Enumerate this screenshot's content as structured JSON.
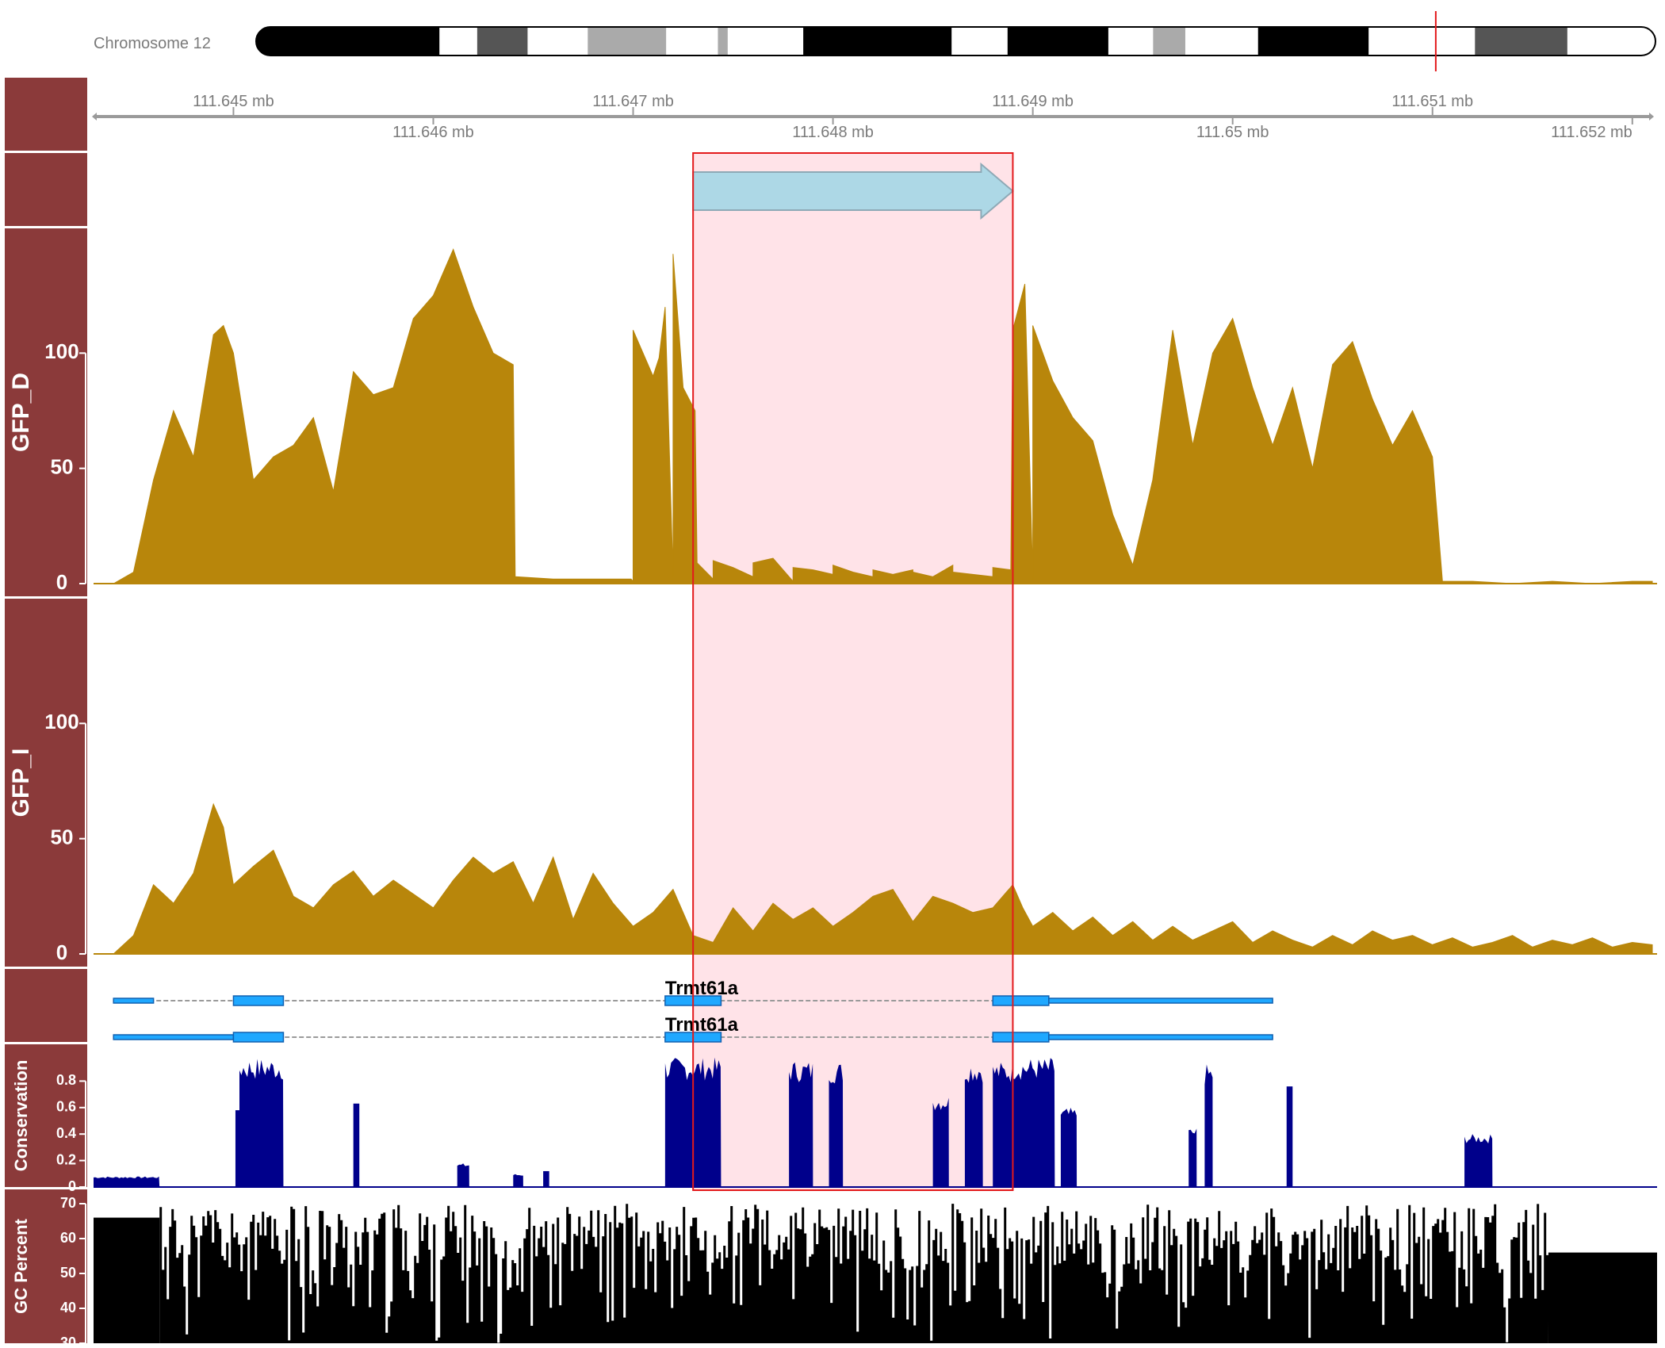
{
  "chromosome": {
    "label": "Chromosome 12",
    "bands": [
      {
        "start": 0.0,
        "end": 0.131,
        "color": "#000000"
      },
      {
        "start": 0.131,
        "end": 0.158,
        "color": "#ffffff"
      },
      {
        "start": 0.158,
        "end": 0.194,
        "color": "#555555"
      },
      {
        "start": 0.194,
        "end": 0.237,
        "color": "#ffffff"
      },
      {
        "start": 0.237,
        "end": 0.293,
        "color": "#aaaaaa"
      },
      {
        "start": 0.293,
        "end": 0.33,
        "color": "#ffffff"
      },
      {
        "start": 0.33,
        "end": 0.337,
        "color": "#aaaaaa"
      },
      {
        "start": 0.337,
        "end": 0.391,
        "color": "#ffffff"
      },
      {
        "start": 0.391,
        "end": 0.497,
        "color": "#000000"
      },
      {
        "start": 0.497,
        "end": 0.537,
        "color": "#ffffff"
      },
      {
        "start": 0.537,
        "end": 0.609,
        "color": "#000000"
      },
      {
        "start": 0.609,
        "end": 0.641,
        "color": "#ffffff"
      },
      {
        "start": 0.641,
        "end": 0.664,
        "color": "#aaaaaa"
      },
      {
        "start": 0.664,
        "end": 0.716,
        "color": "#ffffff"
      },
      {
        "start": 0.716,
        "end": 0.795,
        "color": "#000000"
      },
      {
        "start": 0.795,
        "end": 0.871,
        "color": "#ffffff"
      },
      {
        "start": 0.871,
        "end": 0.937,
        "color": "#555555"
      },
      {
        "start": 0.937,
        "end": 1.0,
        "color": "#ffffff"
      }
    ],
    "marker_position": 0.843,
    "marker_color": "#e31a1c"
  },
  "colors": {
    "panel": "#8b3a3a",
    "coverage": "#b8860b",
    "highlight_fill": "#ffe3e8",
    "highlight_border": "#e31a1c",
    "gene": "#1fa8ff",
    "gene_border": "#1060b0",
    "intron": "#9a9a9a",
    "arrow_fill": "#add8e6",
    "arrow_border": "#8ea9b6",
    "conservation": "#00008b",
    "gc": "#000000",
    "axis": "#9a9a9a"
  },
  "chart_data": {
    "type": "area",
    "xlim": [
      111.6443,
      111.6521
    ],
    "axis": {
      "unit": "mb",
      "ticks_top": [
        {
          "value": 111.645,
          "label": "111.645 mb"
        },
        {
          "value": 111.647,
          "label": "111.647 mb"
        },
        {
          "value": 111.649,
          "label": "111.649 mb"
        },
        {
          "value": 111.651,
          "label": "111.651 mb"
        }
      ],
      "ticks_bottom": [
        {
          "value": 111.646,
          "label": "111.646 mb"
        },
        {
          "value": 111.648,
          "label": "111.648 mb"
        },
        {
          "value": 111.65,
          "label": "111.65 mb"
        },
        {
          "value": 111.652,
          "label": "111.652 mb"
        }
      ]
    },
    "highlight": {
      "start": 111.6473,
      "end": 111.6489
    },
    "feature_arrow": {
      "start": 111.6473,
      "end": 111.6489
    },
    "tracks": [
      {
        "name": "GFP_D",
        "ylim": [
          0,
          150
        ],
        "yticks": [
          0,
          50,
          100
        ],
        "points": [
          [
            111.6443,
            0
          ],
          [
            111.6444,
            0
          ],
          [
            111.6445,
            5
          ],
          [
            111.6446,
            45
          ],
          [
            111.6447,
            75
          ],
          [
            111.6448,
            55
          ],
          [
            111.6449,
            108
          ],
          [
            111.64495,
            112
          ],
          [
            111.645,
            100
          ],
          [
            111.6451,
            45
          ],
          [
            111.6452,
            55
          ],
          [
            111.6453,
            60
          ],
          [
            111.6454,
            72
          ],
          [
            111.6455,
            40
          ],
          [
            111.6456,
            92
          ],
          [
            111.6457,
            82
          ],
          [
            111.6458,
            85
          ],
          [
            111.6459,
            115
          ],
          [
            111.646,
            125
          ],
          [
            111.6461,
            145
          ],
          [
            111.6462,
            120
          ],
          [
            111.6463,
            100
          ],
          [
            111.6464,
            95
          ],
          [
            111.64641,
            3
          ],
          [
            111.6466,
            2
          ],
          [
            111.6468,
            2
          ],
          [
            111.647,
            1
          ],
          [
            111.6472,
            3
          ],
          [
            111.6474,
            2
          ],
          [
            111.6476,
            3
          ],
          [
            111.6478,
            1
          ],
          [
            111.648,
            4
          ],
          [
            111.6482,
            3
          ],
          [
            111.6484,
            6
          ],
          [
            111.6486,
            8
          ],
          [
            111.6488,
            3
          ],
          [
            111.649,
            2
          ],
          [
            111.64699,
            2
          ],
          [
            111.647,
            110
          ],
          [
            111.6471,
            90
          ],
          [
            111.64713,
            98
          ],
          [
            111.64716,
            120
          ],
          [
            111.6472,
            143
          ],
          [
            111.64725,
            85
          ],
          [
            111.64731,
            75
          ],
          [
            111.64732,
            9
          ],
          [
            111.6474,
            10
          ],
          [
            111.6475,
            7
          ],
          [
            111.6476,
            9
          ],
          [
            111.6477,
            11
          ],
          [
            111.6478,
            7
          ],
          [
            111.6479,
            6
          ],
          [
            111.648,
            8
          ],
          [
            111.6481,
            5
          ],
          [
            111.6482,
            6
          ],
          [
            111.6483,
            4
          ],
          [
            111.6484,
            5
          ],
          [
            111.6485,
            3
          ],
          [
            111.6486,
            5
          ],
          [
            111.6487,
            4
          ],
          [
            111.6488,
            7
          ],
          [
            111.64889,
            6
          ],
          [
            111.6489,
            110
          ],
          [
            111.64896,
            130
          ],
          [
            111.649,
            112
          ],
          [
            111.6491,
            88
          ],
          [
            111.6492,
            72
          ],
          [
            111.6493,
            62
          ],
          [
            111.6494,
            30
          ],
          [
            111.6495,
            8
          ],
          [
            111.6496,
            45
          ],
          [
            111.6497,
            110
          ],
          [
            111.6498,
            60
          ],
          [
            111.6499,
            100
          ],
          [
            111.65,
            115
          ],
          [
            111.6501,
            85
          ],
          [
            111.6502,
            60
          ],
          [
            111.6503,
            85
          ],
          [
            111.6504,
            50
          ],
          [
            111.6505,
            95
          ],
          [
            111.6506,
            105
          ],
          [
            111.6507,
            80
          ],
          [
            111.6508,
            60
          ],
          [
            111.6509,
            75
          ],
          [
            111.651,
            55
          ],
          [
            111.65105,
            1
          ],
          [
            111.6512,
            1
          ],
          [
            111.6514,
            0
          ],
          [
            111.6516,
            1
          ],
          [
            111.6518,
            0
          ],
          [
            111.652,
            1
          ],
          [
            111.6521,
            1
          ]
        ]
      },
      {
        "name": "GFP_I",
        "ylim": [
          0,
          150
        ],
        "yticks": [
          0,
          50,
          100
        ],
        "points": [
          [
            111.6443,
            0
          ],
          [
            111.6444,
            0
          ],
          [
            111.6445,
            8
          ],
          [
            111.6446,
            30
          ],
          [
            111.6447,
            22
          ],
          [
            111.6448,
            35
          ],
          [
            111.6449,
            65
          ],
          [
            111.64495,
            55
          ],
          [
            111.645,
            30
          ],
          [
            111.6451,
            38
          ],
          [
            111.6452,
            45
          ],
          [
            111.6453,
            25
          ],
          [
            111.6454,
            20
          ],
          [
            111.6455,
            30
          ],
          [
            111.6456,
            36
          ],
          [
            111.6457,
            25
          ],
          [
            111.6458,
            32
          ],
          [
            111.6459,
            26
          ],
          [
            111.646,
            20
          ],
          [
            111.6461,
            32
          ],
          [
            111.6462,
            42
          ],
          [
            111.6463,
            35
          ],
          [
            111.6464,
            40
          ],
          [
            111.6465,
            22
          ],
          [
            111.6466,
            42
          ],
          [
            111.6467,
            15
          ],
          [
            111.6468,
            35
          ],
          [
            111.6469,
            22
          ],
          [
            111.647,
            12
          ],
          [
            111.6471,
            18
          ],
          [
            111.6472,
            28
          ],
          [
            111.6473,
            8
          ],
          [
            111.6474,
            5
          ],
          [
            111.6475,
            20
          ],
          [
            111.6476,
            10
          ],
          [
            111.6477,
            22
          ],
          [
            111.6478,
            15
          ],
          [
            111.6479,
            20
          ],
          [
            111.648,
            12
          ],
          [
            111.6481,
            18
          ],
          [
            111.6482,
            25
          ],
          [
            111.6483,
            28
          ],
          [
            111.6484,
            14
          ],
          [
            111.6485,
            25
          ],
          [
            111.6486,
            22
          ],
          [
            111.6487,
            18
          ],
          [
            111.6488,
            20
          ],
          [
            111.6489,
            30
          ],
          [
            111.64895,
            20
          ],
          [
            111.649,
            12
          ],
          [
            111.6491,
            18
          ],
          [
            111.6492,
            10
          ],
          [
            111.6493,
            16
          ],
          [
            111.6494,
            8
          ],
          [
            111.6495,
            14
          ],
          [
            111.6496,
            6
          ],
          [
            111.6497,
            12
          ],
          [
            111.6498,
            6
          ],
          [
            111.6499,
            10
          ],
          [
            111.65,
            14
          ],
          [
            111.6501,
            5
          ],
          [
            111.6502,
            10
          ],
          [
            111.6503,
            6
          ],
          [
            111.6504,
            3
          ],
          [
            111.6505,
            8
          ],
          [
            111.6506,
            4
          ],
          [
            111.6507,
            10
          ],
          [
            111.6508,
            6
          ],
          [
            111.6509,
            8
          ],
          [
            111.651,
            4
          ],
          [
            111.6511,
            7
          ],
          [
            111.6512,
            3
          ],
          [
            111.6513,
            5
          ],
          [
            111.6514,
            8
          ],
          [
            111.6515,
            3
          ],
          [
            111.6516,
            6
          ],
          [
            111.6517,
            4
          ],
          [
            111.6518,
            7
          ],
          [
            111.6519,
            3
          ],
          [
            111.652,
            5
          ],
          [
            111.6521,
            4
          ]
        ]
      }
    ],
    "gene_models": [
      {
        "label": "Trmt61a",
        "exons": [
          [
            111.6444,
            111.6446,
            "utr"
          ],
          [
            111.645,
            111.64525,
            "cds"
          ],
          [
            111.64716,
            111.64744,
            "cds"
          ],
          [
            111.6488,
            111.64908,
            "cds"
          ],
          [
            111.64908,
            111.6502,
            "utr"
          ]
        ],
        "start": 111.6444,
        "end": 111.6502
      },
      {
        "label": "Trmt61a",
        "exons": [
          [
            111.6444,
            111.645,
            "utr"
          ],
          [
            111.645,
            111.64525,
            "cds"
          ],
          [
            111.64716,
            111.64744,
            "cds"
          ],
          [
            111.6488,
            111.64908,
            "cds"
          ],
          [
            111.64908,
            111.6502,
            "utr"
          ]
        ],
        "start": 111.6444,
        "end": 111.6502
      }
    ],
    "conservation": {
      "name": "Conservation",
      "ylim": [
        0,
        1.0
      ],
      "yticks": [
        0,
        0.2,
        0.4,
        0.6,
        0.8
      ],
      "ytick_labels": [
        "0",
        "0.2",
        "0.4",
        "0.6",
        "0.8"
      ],
      "blocks": [
        [
          111.6443,
          111.64463,
          0.08
        ],
        [
          111.64501,
          111.64503,
          0.58
        ],
        [
          111.64503,
          111.64525,
          0.98
        ],
        [
          111.6456,
          111.64563,
          0.63
        ],
        [
          111.64612,
          111.64618,
          0.18
        ],
        [
          111.6464,
          111.64645,
          0.1
        ],
        [
          111.64655,
          111.64658,
          0.12
        ],
        [
          111.64716,
          111.64744,
          0.98
        ],
        [
          111.64778,
          111.6479,
          0.96
        ],
        [
          111.64798,
          111.64805,
          0.95
        ],
        [
          111.6485,
          111.64858,
          0.7
        ],
        [
          111.64866,
          111.64875,
          0.96
        ],
        [
          111.6488,
          111.6489,
          0.95
        ],
        [
          111.6489,
          111.64911,
          0.98
        ],
        [
          111.64914,
          111.64922,
          0.6
        ],
        [
          111.64986,
          111.6499,
          0.93
        ],
        [
          111.64978,
          111.64982,
          0.45
        ],
        [
          111.65027,
          111.6503,
          0.76
        ],
        [
          111.65116,
          111.6513,
          0.4
        ]
      ]
    },
    "gc_percent": {
      "name": "GC Percent",
      "ylim": [
        30,
        70
      ],
      "yticks": [
        30,
        40,
        50,
        60,
        70
      ],
      "left_level": 66,
      "right_level": 56
    }
  }
}
